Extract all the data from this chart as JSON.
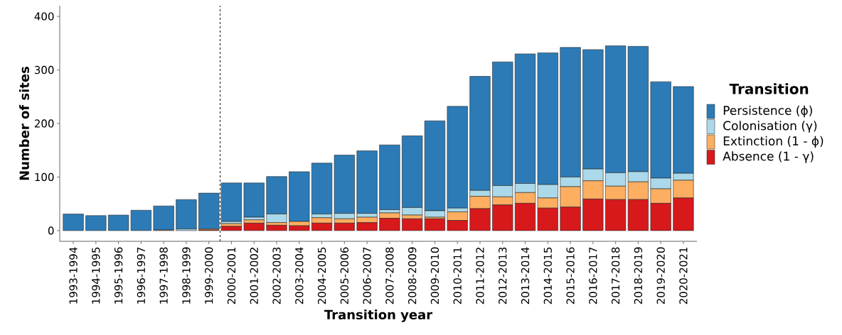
{
  "chart_data": {
    "type": "bar",
    "stacked": true,
    "xlabel": "Transition year",
    "ylabel": "Number of sites",
    "legend_title": "Transition",
    "legend": "right",
    "grid": false,
    "categories": [
      "1993-1994",
      "1994-1995",
      "1995-1996",
      "1996-1997",
      "1997-1998",
      "1998-1999",
      "1999-2000",
      "2000-2001",
      "2001-2002",
      "2002-2003",
      "2003-2004",
      "2004-2005",
      "2005-2006",
      "2006-2007",
      "2007-2008",
      "2008-2009",
      "2009-2010",
      "2010-2011",
      "2011-2012",
      "2012-2013",
      "2013-2014",
      "2014-2015",
      "2015-2016",
      "2016-2017",
      "2017-2018",
      "2018-2019",
      "2019-2020",
      "2020-2021"
    ],
    "series": [
      {
        "name": "Absence (1 - γ)",
        "color": "#d7191c",
        "values": [
          0,
          0,
          0,
          0,
          0,
          0,
          1,
          8,
          14,
          10,
          9,
          14,
          14,
          15,
          23,
          22,
          22,
          19,
          41,
          48,
          51,
          42,
          44,
          59,
          58,
          58,
          51,
          61
        ]
      },
      {
        "name": "Extinction (1 - ϕ)",
        "color": "#fdae61",
        "values": [
          0,
          0,
          0,
          0,
          1,
          0,
          2,
          5,
          6,
          5,
          8,
          10,
          8,
          10,
          10,
          7,
          3,
          16,
          23,
          15,
          20,
          19,
          38,
          34,
          25,
          33,
          27,
          33
        ]
      },
      {
        "name": "Colonisation (γ)",
        "color": "#abd9e9",
        "values": [
          0,
          0,
          0,
          0,
          0,
          3,
          0,
          4,
          5,
          16,
          null,
          7,
          10,
          7,
          6,
          14,
          12,
          7,
          11,
          21,
          17,
          25,
          18,
          22,
          25,
          19,
          20,
          13
        ]
      },
      {
        "name": "Persistence (ϕ)",
        "color": "#2c7bb6",
        "values": [
          31,
          28,
          29,
          38,
          45,
          55,
          67,
          72,
          64,
          70,
          93,
          95,
          109,
          117,
          121,
          134,
          168,
          190,
          213,
          231,
          242,
          246,
          242,
          223,
          237,
          234,
          180,
          162
        ]
      }
    ],
    "ylim": [
      -20,
      420
    ],
    "yticks": [
      0,
      100,
      200,
      300,
      400
    ]
  }
}
